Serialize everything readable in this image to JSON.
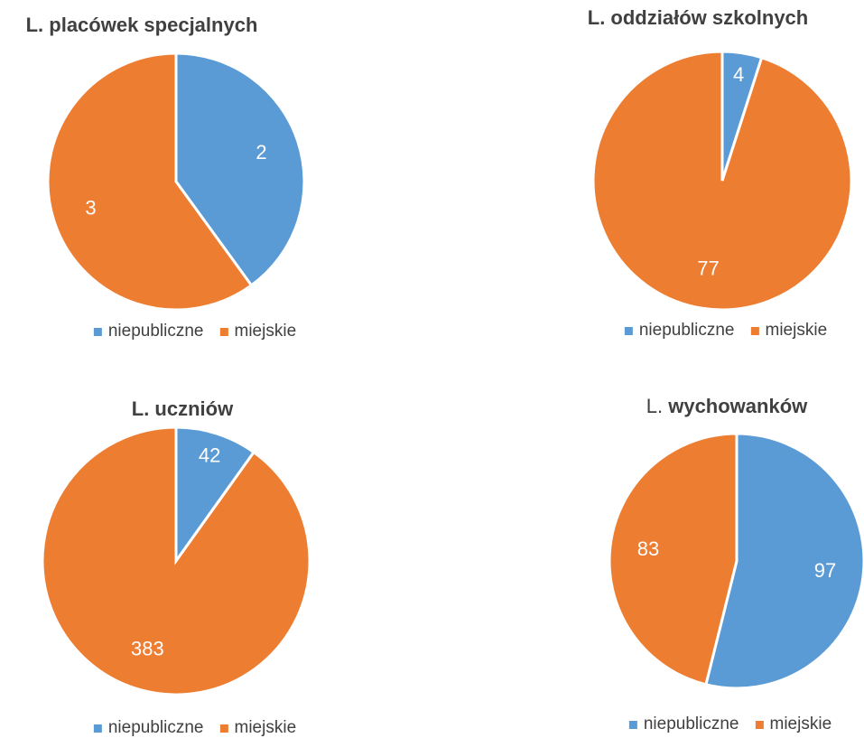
{
  "colors": {
    "niepubliczne": "#5b9bd5",
    "miejskie": "#ed7d31"
  },
  "legend": [
    "niepubliczne",
    "miejskie"
  ],
  "chart_data": [
    {
      "type": "pie",
      "title_prefix": "",
      "title": "L. placówek specjalnych",
      "categories": [
        "niepubliczne",
        "miejskie"
      ],
      "values": [
        2,
        3
      ],
      "legend_position": "bottom"
    },
    {
      "type": "pie",
      "title_prefix": "",
      "title": "L. oddziałów szkolnych",
      "categories": [
        "niepubliczne",
        "miejskie"
      ],
      "values": [
        4,
        77
      ],
      "legend_position": "bottom"
    },
    {
      "type": "pie",
      "title_prefix": "",
      "title": "L. uczniów",
      "categories": [
        "niepubliczne",
        "miejskie"
      ],
      "values": [
        42,
        383
      ],
      "legend_position": "bottom"
    },
    {
      "type": "pie",
      "title_prefix": "L.",
      "title": "wychowanków",
      "categories": [
        "niepubliczne",
        "miejskie"
      ],
      "values": [
        97,
        83
      ],
      "legend_position": "bottom"
    }
  ]
}
